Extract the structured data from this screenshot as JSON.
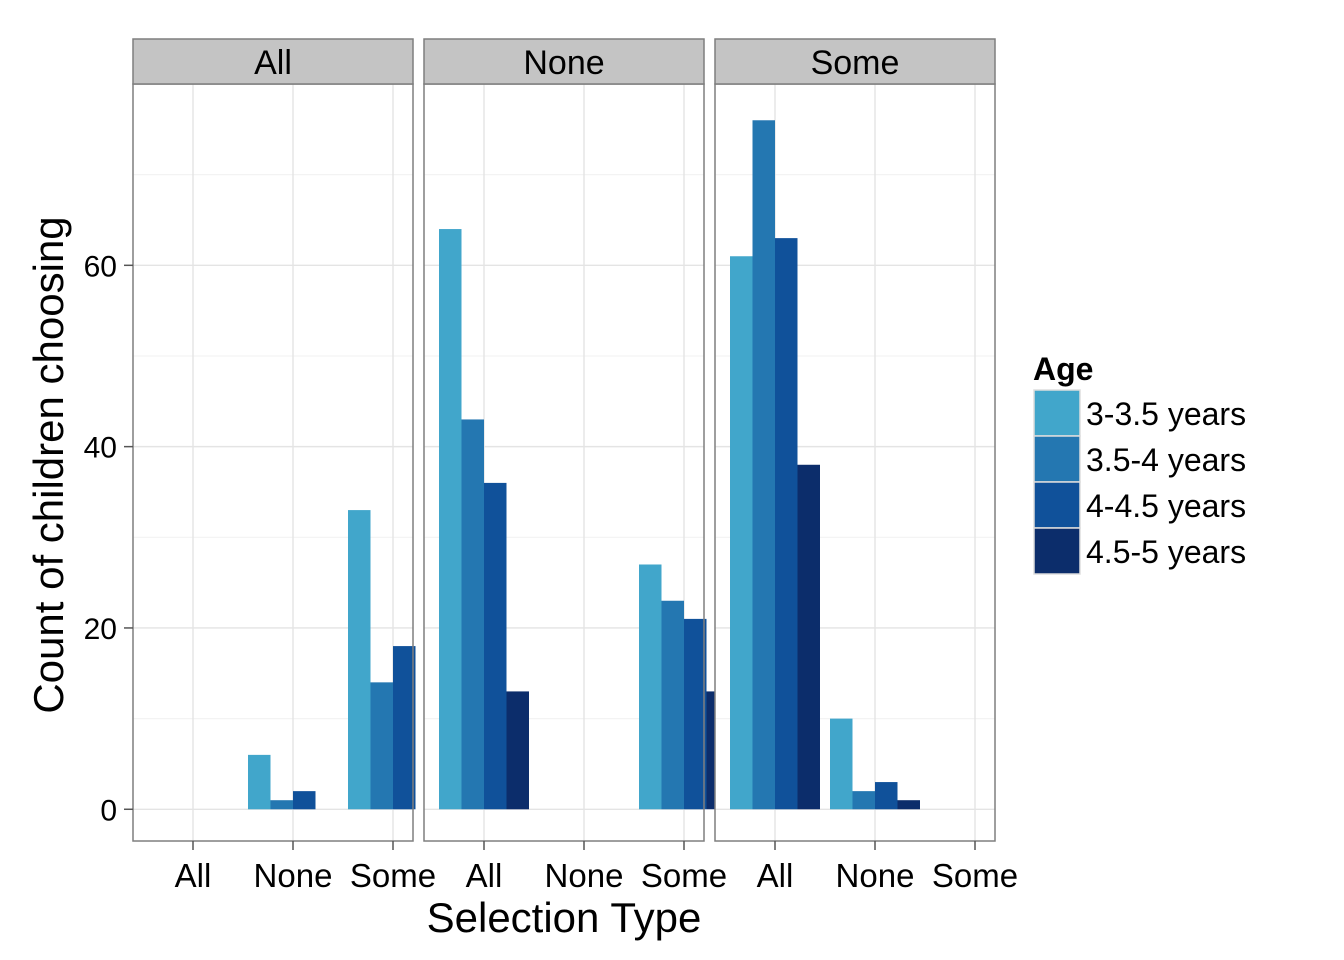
{
  "chart_data": {
    "type": "bar",
    "layout": "faceted-grouped",
    "facet_variable": "Selection Type",
    "facets": [
      "All",
      "None",
      "Some"
    ],
    "categories": [
      "All",
      "None",
      "Some"
    ],
    "xlabel": "Selection Type",
    "ylabel": "Count of children choosing",
    "ylim": [
      -3.5,
      80
    ],
    "yticks": [
      0,
      20,
      40,
      60
    ],
    "grid": true,
    "legend": {
      "title": "Age",
      "position": "right",
      "entries": [
        "3-3.5 years",
        "3.5-4 years",
        "4-4.5 years",
        "4.5-5 years"
      ]
    },
    "series": [
      {
        "name": "3-3.5 years",
        "color": "#41a6cb",
        "values": [
          [
            null,
            6,
            33
          ],
          [
            64,
            null,
            27
          ],
          [
            61,
            10,
            null
          ]
        ]
      },
      {
        "name": "3.5-4 years",
        "color": "#2477b1",
        "values": [
          [
            null,
            1,
            14
          ],
          [
            43,
            null,
            23
          ],
          [
            76,
            2,
            null
          ]
        ]
      },
      {
        "name": "4-4.5 years",
        "color": "#10519a",
        "values": [
          [
            null,
            2,
            18
          ],
          [
            36,
            null,
            21
          ],
          [
            63,
            3,
            null
          ]
        ]
      },
      {
        "name": "4.5-5 years",
        "color": "#0c2d6b",
        "values": [
          [
            null,
            null,
            null
          ],
          [
            13,
            null,
            13
          ],
          [
            38,
            1,
            null
          ]
        ]
      }
    ]
  }
}
